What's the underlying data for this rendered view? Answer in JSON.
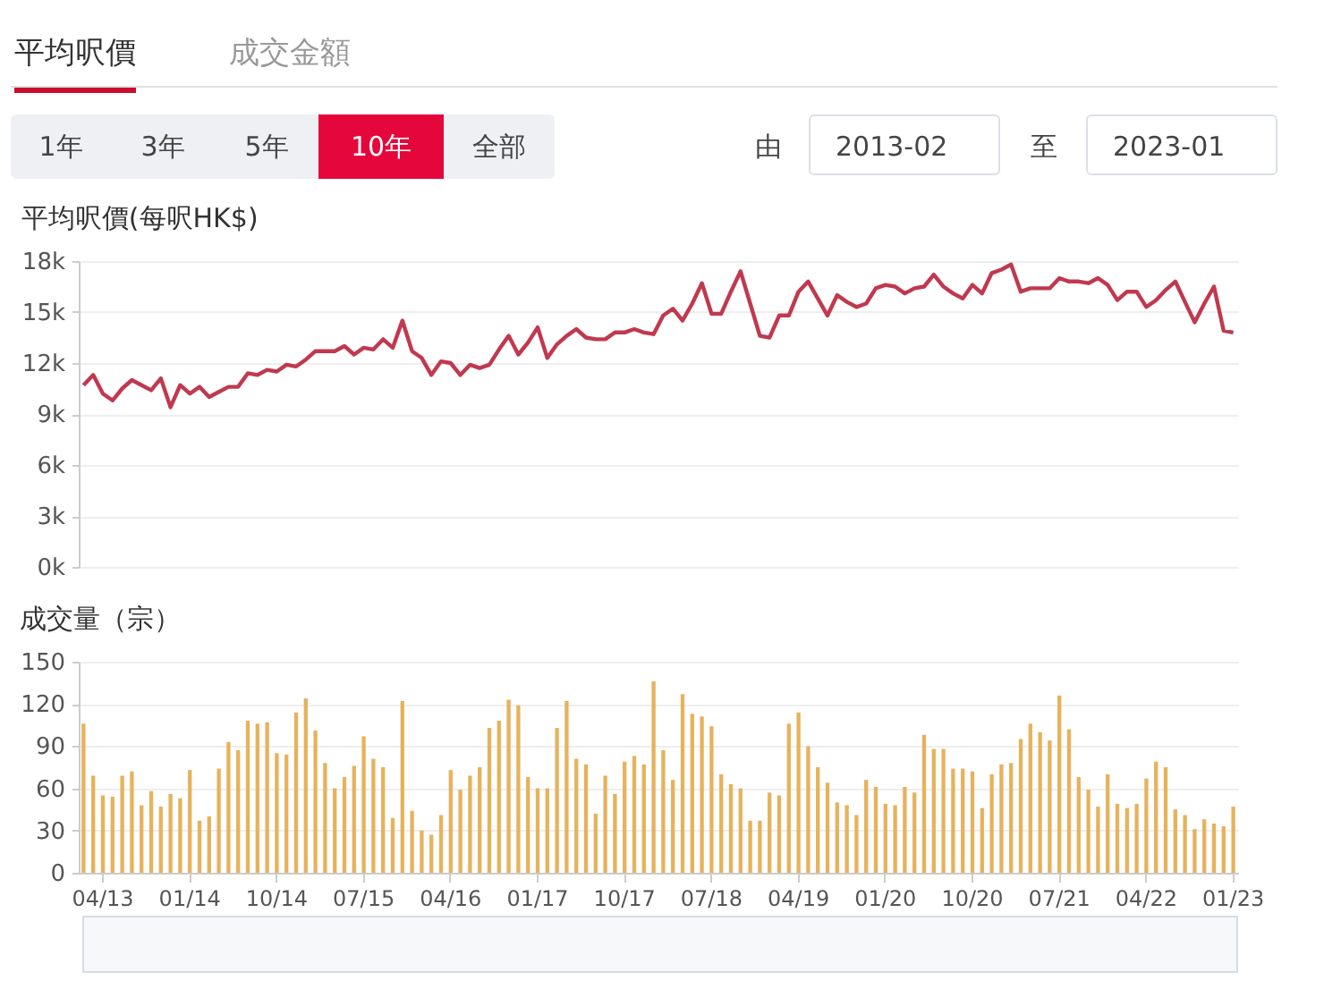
{
  "chart_data": [
    {
      "type": "other",
      "annotations": [
        "平均呎價",
        "成交金額",
        "1年",
        "3年",
        "5年",
        "10年",
        "全部",
        "由",
        "2013-02",
        "至",
        "2023-01"
      ]
    },
    {
      "type": "line",
      "title": "平均呎價(每呎HK$)",
      "color": "#c0394f",
      "grid": "y",
      "tick_labels": "y",
      "categories": [
        null,
        null,
        null,
        null,
        null,
        null,
        null,
        null,
        null,
        null,
        null,
        null,
        null,
        null,
        null,
        null,
        null,
        null,
        null,
        null,
        null,
        null,
        null,
        null,
        null,
        null,
        null,
        null,
        null,
        null,
        null,
        null,
        null,
        null,
        null,
        null,
        null,
        null,
        null,
        null,
        null,
        null,
        null,
        null,
        null,
        null,
        null,
        null,
        null,
        null,
        null,
        null,
        null,
        null,
        null,
        null,
        null,
        null,
        null,
        null,
        null,
        null,
        null,
        null,
        null,
        null,
        null,
        null,
        null,
        null,
        null,
        null,
        null,
        null,
        null,
        null,
        null,
        null,
        null,
        null,
        null,
        null,
        null,
        null,
        null,
        null,
        null,
        null,
        null,
        null,
        null,
        null,
        null,
        null,
        null,
        null,
        null,
        null,
        null,
        null,
        null,
        null,
        null,
        null,
        null,
        null,
        null,
        null,
        null,
        null,
        null,
        null,
        null,
        null,
        null,
        null,
        null,
        null,
        null,
        null
      ],
      "values": [
        10700,
        11300,
        10200,
        9800,
        10500,
        11000,
        10700,
        10400,
        11100,
        9400,
        10700,
        10200,
        10600,
        10000,
        10300,
        10600,
        10600,
        11400,
        11300,
        11600,
        11500,
        11900,
        11800,
        12200,
        12700,
        12700,
        12700,
        13000,
        12500,
        12900,
        12800,
        13400,
        12900,
        14500,
        12700,
        12300,
        11300,
        12100,
        12000,
        11300,
        11900,
        11700,
        11900,
        12800,
        13600,
        12500,
        13200,
        14100,
        12300,
        13100,
        13600,
        14000,
        13500,
        13400,
        13400,
        13800,
        13800,
        14000,
        13800,
        13700,
        14800,
        15200,
        14500,
        15500,
        16700,
        14900,
        14900,
        16200,
        17400,
        15500,
        13600,
        13500,
        14800,
        14800,
        16200,
        16800,
        15800,
        14800,
        16000,
        15600,
        15300,
        15500,
        16400,
        16600,
        16500,
        16100,
        16400,
        16500,
        17200,
        16500,
        16100,
        15800,
        16600,
        16100,
        17300,
        17500,
        17800,
        16200,
        16400,
        16400,
        16400,
        17000,
        16800,
        16800,
        16700,
        17000,
        16600,
        15700,
        16200,
        16200,
        15300,
        15700,
        16300,
        16800,
        15600,
        14400,
        15500,
        16500,
        13900,
        13800
      ],
      "ylim": [
        0,
        18000
      ],
      "yticks": [
        {
          "value": 0,
          "label": "0k"
        },
        {
          "value": 3000,
          "label": "3k"
        },
        {
          "value": 6000,
          "label": "6k"
        },
        {
          "value": 9000,
          "label": "9k"
        },
        {
          "value": 12000,
          "label": "12k"
        },
        {
          "value": 15000,
          "label": "15k"
        },
        {
          "value": 18000,
          "label": "18k"
        }
      ]
    },
    {
      "type": "bar",
      "title": "成交量（宗）",
      "color": "#e6b25c",
      "grid": "y",
      "categories": [
        null,
        null,
        "04/13",
        null,
        null,
        null,
        null,
        null,
        null,
        null,
        null,
        "01/14",
        null,
        null,
        null,
        null,
        null,
        null,
        null,
        null,
        "10/14",
        null,
        null,
        null,
        null,
        null,
        null,
        null,
        null,
        "07/15",
        null,
        null,
        null,
        null,
        null,
        null,
        null,
        null,
        "04/16",
        null,
        null,
        null,
        null,
        null,
        null,
        null,
        null,
        "01/17",
        null,
        null,
        null,
        null,
        null,
        null,
        null,
        null,
        "10/17",
        null,
        null,
        null,
        null,
        null,
        null,
        null,
        null,
        "07/18",
        null,
        null,
        null,
        null,
        null,
        null,
        null,
        null,
        "04/19",
        null,
        null,
        null,
        null,
        null,
        null,
        null,
        null,
        "01/20",
        null,
        null,
        null,
        null,
        null,
        null,
        null,
        null,
        "10/20",
        null,
        null,
        null,
        null,
        null,
        null,
        null,
        null,
        "07/21",
        null,
        null,
        null,
        null,
        null,
        null,
        null,
        null,
        "04/22",
        null,
        null,
        null,
        null,
        null,
        null,
        null,
        null,
        "01/23"
      ],
      "values": [
        106,
        69,
        55,
        54,
        69,
        72,
        48,
        58,
        47,
        56,
        53,
        73,
        37,
        40,
        74,
        93,
        87,
        108,
        106,
        107,
        85,
        84,
        114,
        124,
        101,
        78,
        60,
        68,
        76,
        97,
        81,
        75,
        39,
        122,
        44,
        30,
        27,
        41,
        73,
        59,
        69,
        75,
        103,
        108,
        123,
        119,
        68,
        60,
        60,
        103,
        122,
        81,
        77,
        42,
        69,
        56,
        79,
        83,
        77,
        136,
        87,
        66,
        127,
        113,
        111,
        104,
        70,
        63,
        60,
        37,
        37,
        57,
        55,
        106,
        114,
        90,
        75,
        64,
        50,
        48,
        41,
        66,
        61,
        49,
        48,
        61,
        57,
        98,
        88,
        88,
        74,
        74,
        72,
        46,
        70,
        77,
        78,
        95,
        106,
        100,
        94,
        126,
        102,
        68,
        59,
        47,
        70,
        49,
        46,
        49,
        67,
        79,
        75,
        45,
        41,
        31,
        38,
        35,
        33,
        47
      ],
      "ylim": [
        0,
        150
      ],
      "yticks": [
        0,
        30,
        60,
        90,
        120,
        150
      ]
    }
  ]
}
